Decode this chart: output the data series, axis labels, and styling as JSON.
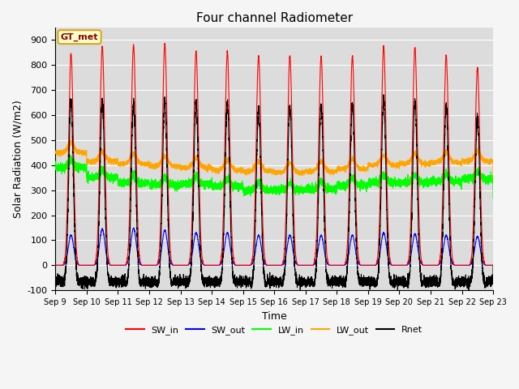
{
  "title": "Four channel Radiometer",
  "xlabel": "Time",
  "ylabel": "Solar Radiation (W/m2)",
  "ylim": [
    -100,
    950
  ],
  "yticks": [
    -100,
    0,
    100,
    200,
    300,
    400,
    500,
    600,
    700,
    800,
    900
  ],
  "num_days": 14,
  "annotation_text": "GT_met",
  "annotation_color": "#8B0000",
  "annotation_bg": "#FFFFCC",
  "annotation_border": "#DAA520",
  "colors": {
    "SW_in": "#FF0000",
    "SW_out": "#0000FF",
    "LW_in": "#00FF00",
    "LW_out": "#FFA500",
    "Rnet": "#000000"
  },
  "bg_color": "#DCDCDC",
  "fig_bg": "#F5F5F5",
  "x_tick_labels": [
    "Sep 9",
    "Sep 10",
    "Sep 11",
    "Sep 12",
    "Sep 13",
    "Sep 14",
    "Sep 15",
    "Sep 16",
    "Sep 17",
    "Sep 18",
    "Sep 19",
    "Sep 20",
    "Sep 21",
    "Sep 22",
    "Sep 23"
  ],
  "SW_in_peaks": [
    845,
    875,
    880,
    885,
    855,
    855,
    835,
    835,
    835,
    835,
    875,
    870,
    840,
    790
  ],
  "SW_out_peaks": [
    120,
    145,
    148,
    140,
    130,
    130,
    120,
    120,
    120,
    120,
    130,
    125,
    120,
    115
  ],
  "LW_in_base": [
    390,
    350,
    330,
    320,
    325,
    315,
    300,
    300,
    305,
    320,
    330,
    330,
    335,
    345
  ],
  "LW_out_base": [
    450,
    415,
    405,
    395,
    390,
    380,
    375,
    370,
    375,
    385,
    400,
    405,
    410,
    415
  ],
  "Rnet_night": -65,
  "Rnet_peak_scale": 0.68
}
